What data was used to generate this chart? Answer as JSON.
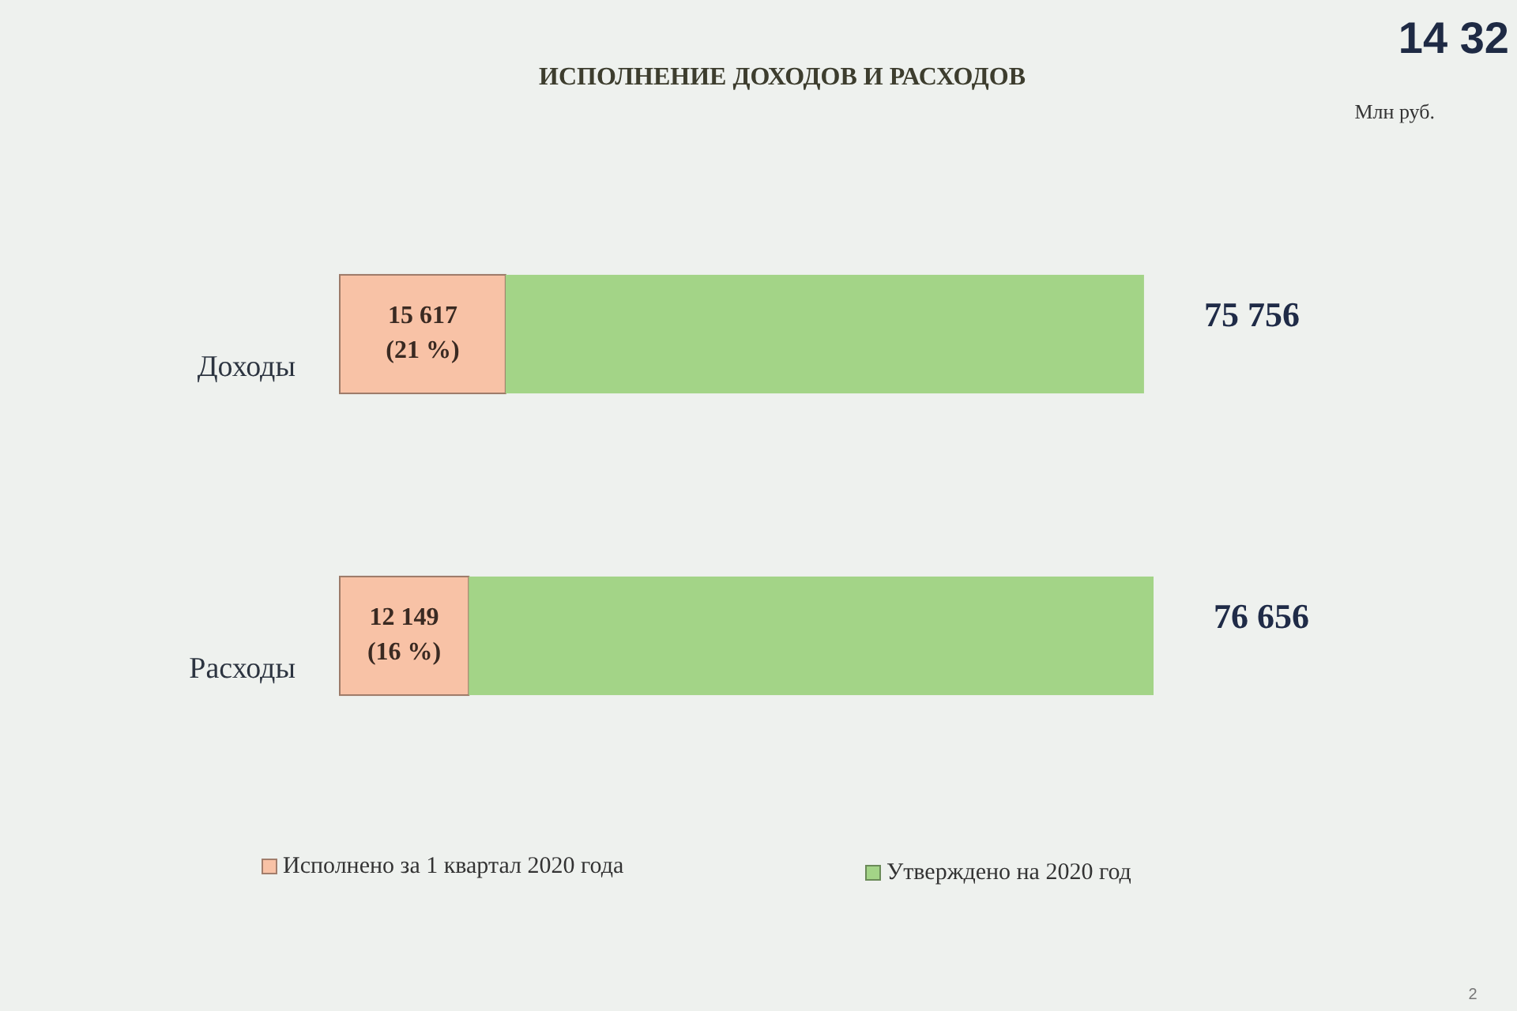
{
  "chart_data": {
    "type": "bar",
    "orientation": "horizontal",
    "stacked": true,
    "title": "ИСПОЛНЕНИЕ ДОХОДОВ И РАСХОДОВ",
    "categories": [
      "Доходы",
      "Расходы"
    ],
    "series": [
      {
        "name": "Исполнено за 1 квартал 2020 года",
        "color": "#f8c2a6",
        "values": [
          15617,
          12149
        ],
        "value_labels": [
          "15 617\n(21 %)",
          "12 149\n(16 %)"
        ]
      },
      {
        "name": "Утверждено на 2020 год",
        "color": "#a3d487",
        "values": [
          60139,
          64507
        ]
      }
    ],
    "totals": [
      "75 756",
      "76 656"
    ],
    "legend": "bottom",
    "annotations": [
      "Млн руб.",
      "14 32",
      "2"
    ]
  }
}
